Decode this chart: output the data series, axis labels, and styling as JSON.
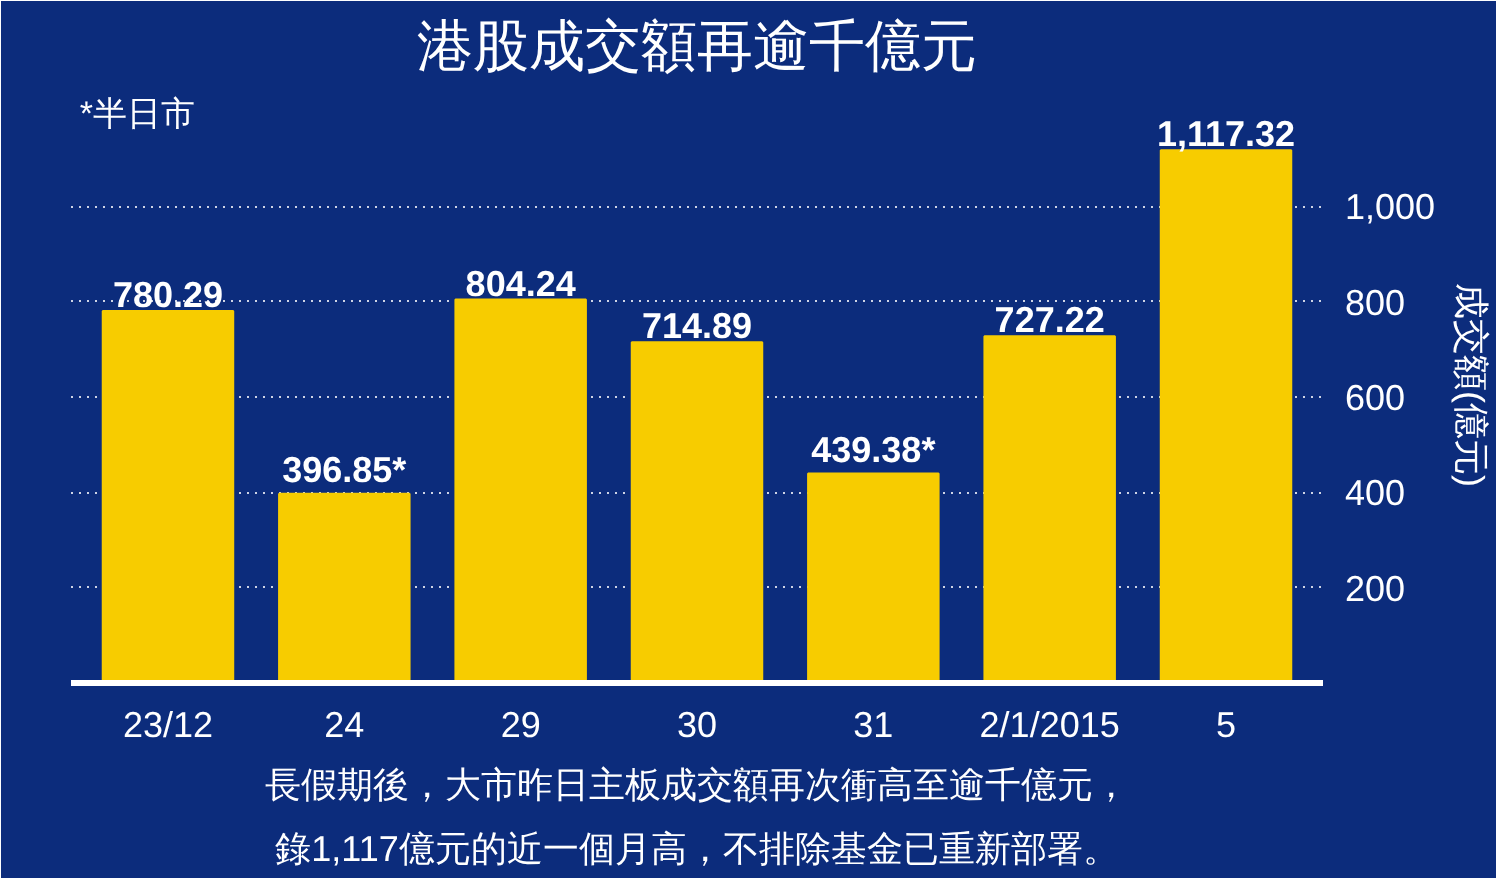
{
  "chart_data": {
    "type": "bar",
    "title": "港股成交額再逾千億元",
    "ylabel": "成交額(億元)",
    "categories": [
      "23/12",
      "24",
      "29",
      "30",
      "31",
      "2/1/2015",
      "5"
    ],
    "values": [
      780.29,
      396.85,
      804.24,
      714.89,
      439.38,
      727.22,
      1117.32
    ],
    "value_labels": [
      "780.29",
      "396.85*",
      "804.24",
      "714.89",
      "439.38*",
      "727.22",
      "1,117.32"
    ],
    "color": "#f7cc00",
    "ylim": [
      0,
      1250
    ],
    "yticks": [
      200,
      400,
      600,
      800,
      {
        "value": 1000,
        "label": "1,000"
      }
    ],
    "grid": "y",
    "line_style": "dotted",
    "annotations": [
      "*半日市",
      "長假期後，大市昨日主板成交額再次衝高至逾千億元，",
      "錄1,117億元的近一個月高，不排除基金已重新部署。"
    ]
  }
}
